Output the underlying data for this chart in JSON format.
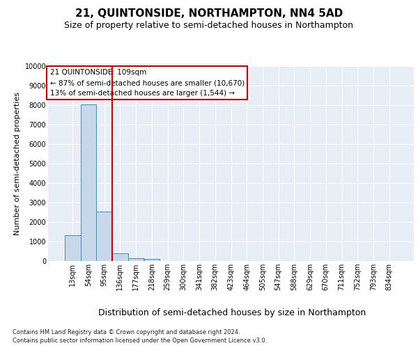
{
  "title": "21, QUINTONSIDE, NORTHAMPTON, NN4 5AD",
  "subtitle": "Size of property relative to semi-detached houses in Northampton",
  "xlabel": "Distribution of semi-detached houses by size in Northampton",
  "ylabel": "Number of semi-detached properties",
  "footnote1": "Contains HM Land Registry data © Crown copyright and database right 2024.",
  "footnote2": "Contains public sector information licensed under the Open Government Licence v3.0.",
  "bar_labels": [
    "13sqm",
    "54sqm",
    "95sqm",
    "136sqm",
    "177sqm",
    "218sqm",
    "259sqm",
    "300sqm",
    "341sqm",
    "382sqm",
    "423sqm",
    "464sqm",
    "505sqm",
    "547sqm",
    "588sqm",
    "629sqm",
    "670sqm",
    "711sqm",
    "752sqm",
    "793sqm",
    "834sqm"
  ],
  "bar_values": [
    1310,
    8050,
    2550,
    380,
    150,
    100,
    0,
    0,
    0,
    0,
    0,
    0,
    0,
    0,
    0,
    0,
    0,
    0,
    0,
    0,
    0
  ],
  "bar_color": "#c8d8ea",
  "bar_edge_color": "#4d88aa",
  "vline_color": "#cc0000",
  "vline_position": 2.5,
  "annotation_line1": "21 QUINTONSIDE: 109sqm",
  "annotation_line2": "← 87% of semi-detached houses are smaller (10,670)",
  "annotation_line3": "13% of semi-detached houses are larger (1,544) →",
  "annotation_box_facecolor": "white",
  "annotation_box_edgecolor": "#cc0000",
  "ylim_max": 10000,
  "yticks": [
    0,
    1000,
    2000,
    3000,
    4000,
    5000,
    6000,
    7000,
    8000,
    9000,
    10000
  ],
  "bg_color": "#e8eef5",
  "grid_color": "white",
  "title_fontsize": 11,
  "subtitle_fontsize": 9,
  "tick_fontsize": 7,
  "ylabel_fontsize": 8,
  "xlabel_fontsize": 9,
  "annotation_fontsize": 7.5,
  "footnote_fontsize": 6
}
